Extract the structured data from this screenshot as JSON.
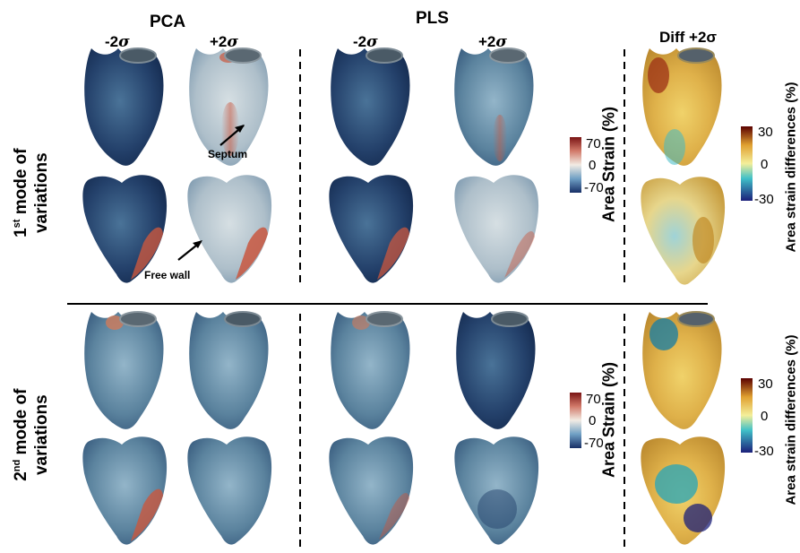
{
  "columns": {
    "pca": "PCA",
    "pls": "PLS",
    "diff": "Diff +2σ",
    "minus": "-2",
    "plus": "+2",
    "sigma": "σ"
  },
  "rows": {
    "first": {
      "num": "1",
      "sup": "st",
      "rest": "mode of",
      "line2": "variations"
    },
    "second": {
      "num": "2",
      "sup": "nd",
      "rest": "mode of",
      "line2": "variations"
    }
  },
  "annotations": {
    "septum": "Septum",
    "free_wall": "Free wall"
  },
  "colorbars": {
    "area_strain": {
      "label": "Area Strain (%)",
      "max": "70",
      "mid": "0",
      "min": "-70"
    },
    "area_strain_diff": {
      "label": "Area strain differences (%)",
      "max": "30",
      "mid": "0",
      "min": "-30"
    }
  },
  "colors": {
    "strain_high": "#8b1a1a",
    "strain_mid": "#f2ece4",
    "strain_low": "#1c3a73",
    "diff_high": "#6b0000",
    "diff_mid": "#f0e08c",
    "diff_low": "#1b1f7a"
  }
}
